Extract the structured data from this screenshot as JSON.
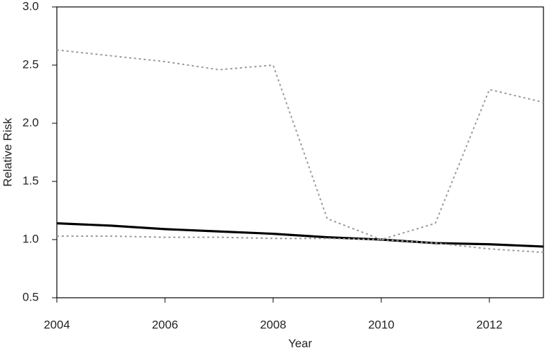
{
  "chart_data": {
    "type": "line",
    "x_label": "Year",
    "y_label": "Relative Risk",
    "x": [
      2004,
      2005,
      2006,
      2007,
      2008,
      2009,
      2010,
      2011,
      2012,
      2013
    ],
    "series": [
      {
        "color": "#000000",
        "style": "solid",
        "values": [
          1.14,
          1.12,
          1.09,
          1.07,
          1.05,
          1.02,
          1.0,
          0.97,
          0.96,
          0.94
        ]
      },
      {
        "color": "#999999",
        "style": "dotted",
        "values": [
          2.63,
          2.58,
          2.53,
          2.46,
          2.5,
          1.18,
          1.0,
          1.14,
          2.29,
          2.18
        ]
      },
      {
        "color": "#999999",
        "style": "dotted",
        "values": [
          1.03,
          1.03,
          1.02,
          1.02,
          1.01,
          1.01,
          1.0,
          0.97,
          0.92,
          0.89
        ]
      }
    ],
    "xlim": [
      2004,
      2013
    ],
    "xticks": [
      2004,
      2006,
      2008,
      2010,
      2012
    ],
    "ylim": [
      0.5,
      3.0
    ],
    "yticks": [
      0.5,
      {
        "value": 1,
        "label": "1.0"
      },
      1.5,
      {
        "value": 2,
        "label": "2.0"
      },
      2.5,
      {
        "value": 3,
        "label": "3.0"
      }
    ],
    "grid": false
  }
}
